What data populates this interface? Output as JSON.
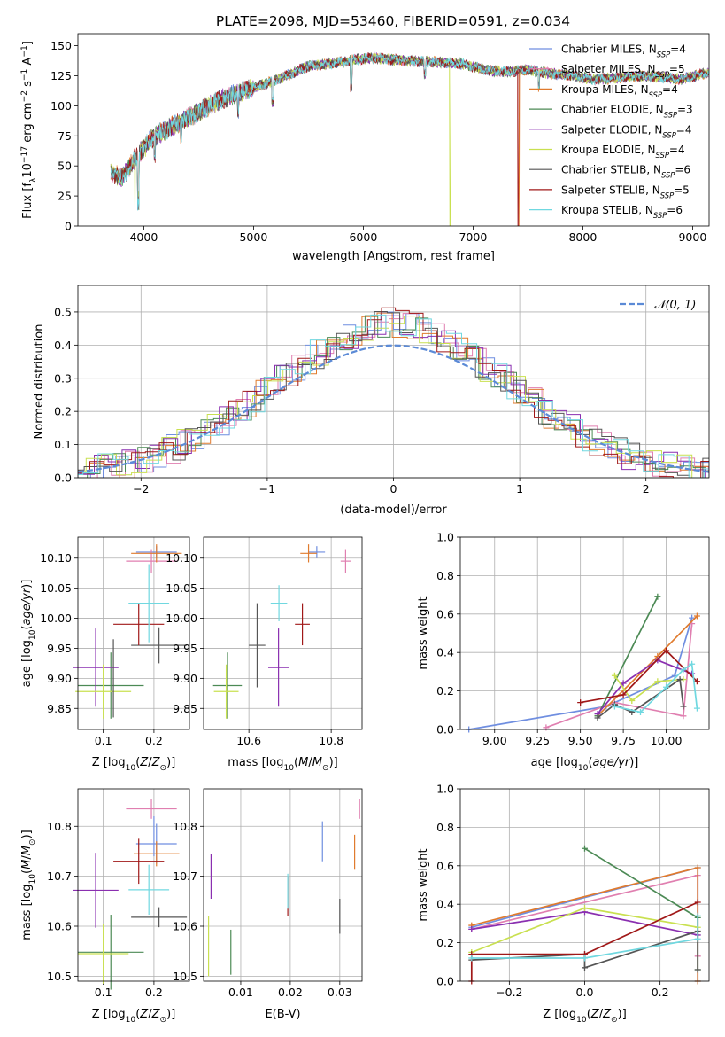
{
  "figure_title": "PLATE=2098, MJD=53460, FIBERID=0591, z=0.034",
  "colors": {
    "Chabrier MILES": "#6f8ee0",
    "Salpeter MILES": "#e07fb0",
    "Kroupa MILES": "#e07b2e",
    "Chabrier ELODIE": "#4c8a55",
    "Salpeter ELODIE": "#8a2fb0",
    "Kroupa ELODIE": "#c9e050",
    "Chabrier STELIB": "#555555",
    "Salpeter STELIB": "#a01818",
    "Kroupa STELIB": "#70d8e0",
    "normal": "#5b8ad6"
  },
  "legend_entries": [
    {
      "model": "Chabrier MILES",
      "n": "4"
    },
    {
      "model": "Salpeter MILES",
      "n": "5"
    },
    {
      "model": "Kroupa MILES",
      "n": "4"
    },
    {
      "model": "Chabrier ELODIE",
      "n": "3"
    },
    {
      "model": "Salpeter ELODIE",
      "n": "4"
    },
    {
      "model": "Kroupa ELODIE",
      "n": "4"
    },
    {
      "model": "Chabrier STELIB",
      "n": "6"
    },
    {
      "model": "Salpeter STELIB",
      "n": "5"
    },
    {
      "model": "Kroupa STELIB",
      "n": "6"
    }
  ],
  "chart_data": [
    {
      "type": "line",
      "panel": "spectrum",
      "xlabel": "wavelength [Angstrom, rest frame]",
      "ylabel": "Flux [f_λ 10^-17 erg cm^-2 s^-1 A^-1]",
      "xlim": [
        3400,
        9150
      ],
      "ylim": [
        0,
        160
      ],
      "xticks": [
        4000,
        5000,
        6000,
        7000,
        8000,
        9000
      ],
      "yticks": [
        0,
        25,
        50,
        75,
        100,
        125,
        150
      ],
      "continuum_x": [
        3700,
        3800,
        3950,
        4100,
        4300,
        4500,
        4700,
        4900,
        5100,
        5300,
        5500,
        5700,
        5900,
        6100,
        6300,
        6500,
        6700,
        6900,
        7100,
        7300,
        7500,
        7700,
        7900,
        8100,
        8300,
        8500,
        8700,
        8900,
        9150
      ],
      "continuum_y": [
        45,
        40,
        60,
        75,
        85,
        95,
        105,
        112,
        118,
        125,
        133,
        135,
        138,
        140,
        138,
        137,
        136,
        135,
        130,
        128,
        130,
        127,
        125,
        122,
        123,
        125,
        124,
        122,
        128
      ],
      "dropouts": [
        {
          "series": "Kroupa ELODIE",
          "x": 3920
        },
        {
          "series": "Kroupa ELODIE",
          "x": 6790
        },
        {
          "series": "Kroupa MILES",
          "x": 7420
        },
        {
          "series": "Salpeter STELIB",
          "x": 7410
        }
      ]
    },
    {
      "type": "area",
      "panel": "residual histogram",
      "xlabel": "(data-model)/error",
      "ylabel": "Normed distribution",
      "xlim": [
        -2.5,
        2.5
      ],
      "ylim": [
        0,
        0.58
      ],
      "xticks": [
        -2,
        -1,
        0,
        1,
        2
      ],
      "yticks": [
        0.0,
        0.1,
        0.2,
        0.3,
        0.4,
        0.5
      ],
      "legend": "𝒩(0, 1)",
      "normal_mean": 0,
      "normal_sigma": 1
    },
    {
      "type": "scatter",
      "panel": "age vs Z",
      "xlabel": "Z [log10(Z/Z⊙)]",
      "ylabel": "age [log10(age/yr)]",
      "xlim": [
        0.05,
        0.27
      ],
      "ylim": [
        9.815,
        10.135
      ],
      "xticks": [
        0.1,
        0.2
      ],
      "yticks": [
        9.85,
        9.9,
        9.95,
        10.0,
        10.05,
        10.1
      ],
      "points": [
        {
          "series": "Chabrier MILES",
          "x": 0.205,
          "y": 10.11,
          "ex": 0.04,
          "ey": 0.01
        },
        {
          "series": "Salpeter MILES",
          "x": 0.195,
          "y": 10.095,
          "ex": 0.05,
          "ey": 0.02
        },
        {
          "series": "Kroupa MILES",
          "x": 0.205,
          "y": 10.108,
          "ex": 0.05,
          "ey": 0.015
        },
        {
          "series": "Chabrier ELODIE",
          "x": 0.115,
          "y": 9.888,
          "ex": 0.065,
          "ey": 0.055
        },
        {
          "series": "Salpeter ELODIE",
          "x": 0.085,
          "y": 9.918,
          "ex": 0.045,
          "ey": 0.065
        },
        {
          "series": "Kroupa ELODIE",
          "x": 0.1,
          "y": 9.878,
          "ex": 0.055,
          "ey": 0.045
        },
        {
          "series": "Chabrier STELIB",
          "x": 0.21,
          "y": 9.955,
          "ex": 0.055,
          "ey": 0.03
        },
        {
          "series": "Salpeter STELIB",
          "x": 0.17,
          "y": 9.99,
          "ex": 0.05,
          "ey": 0.035
        },
        {
          "series": "Kroupa STELIB",
          "x": 0.19,
          "y": 10.025,
          "ex": 0.04,
          "ey": 0.065
        },
        {
          "series": "Chabrier STELIB",
          "x": 0.12,
          "y": 9.9,
          "ex": 0.0,
          "ey": 0.065
        }
      ]
    },
    {
      "type": "scatter",
      "panel": "age vs mass",
      "xlabel": "mass [log10(M/M⊙)]",
      "ylabel": "",
      "xlim": [
        10.49,
        10.875
      ],
      "ylim": [
        9.815,
        10.135
      ],
      "xticks": [
        10.6,
        10.8
      ],
      "yticks": [
        9.85,
        9.9,
        9.95,
        10.0,
        10.05,
        10.1
      ],
      "points": [
        {
          "series": "Chabrier MILES",
          "x": 10.765,
          "y": 10.11,
          "ex": 0.02,
          "ey": 0.01
        },
        {
          "series": "Salpeter MILES",
          "x": 10.835,
          "y": 10.095,
          "ex": 0.012,
          "ey": 0.02
        },
        {
          "series": "Kroupa MILES",
          "x": 10.745,
          "y": 10.108,
          "ex": 0.02,
          "ey": 0.015
        },
        {
          "series": "Chabrier ELODIE",
          "x": 10.548,
          "y": 9.888,
          "ex": 0.035,
          "ey": 0.055
        },
        {
          "series": "Salpeter ELODIE",
          "x": 10.672,
          "y": 9.918,
          "ex": 0.025,
          "ey": 0.065
        },
        {
          "series": "Kroupa ELODIE",
          "x": 10.545,
          "y": 9.878,
          "ex": 0.03,
          "ey": 0.045
        },
        {
          "series": "Chabrier STELIB",
          "x": 10.62,
          "y": 9.955,
          "ex": 0.02,
          "ey": 0.07
        },
        {
          "series": "Salpeter STELIB",
          "x": 10.73,
          "y": 9.99,
          "ex": 0.018,
          "ey": 0.035
        },
        {
          "series": "Kroupa STELIB",
          "x": 10.673,
          "y": 10.025,
          "ex": 0.02,
          "ey": 0.03
        }
      ]
    },
    {
      "type": "line",
      "panel": "mass weight vs age",
      "xlabel": "age [log10(age/yr)]",
      "ylabel": "mass weight",
      "xlim": [
        8.8,
        10.25
      ],
      "ylim": [
        0,
        1.0
      ],
      "xticks": [
        9.0,
        9.25,
        9.5,
        9.75,
        10.0
      ],
      "yticks": [
        0.0,
        0.2,
        0.4,
        0.6,
        0.8,
        1.0
      ],
      "series": [
        {
          "name": "Chabrier MILES",
          "x": [
            8.85,
            9.65,
            10.05,
            10.15
          ],
          "y": [
            0.0,
            0.12,
            0.28,
            0.58
          ]
        },
        {
          "name": "Salpeter MILES",
          "x": [
            9.3,
            9.7,
            10.1,
            10.15
          ],
          "y": [
            0.01,
            0.14,
            0.07,
            0.55
          ]
        },
        {
          "name": "Kroupa MILES",
          "x": [
            9.6,
            9.95,
            10.18
          ],
          "y": [
            0.07,
            0.38,
            0.59
          ]
        },
        {
          "name": "Chabrier ELODIE",
          "x": [
            9.6,
            9.95
          ],
          "y": [
            0.07,
            0.69
          ]
        },
        {
          "name": "Salpeter ELODIE",
          "x": [
            9.6,
            9.75,
            9.95,
            10.15
          ],
          "y": [
            0.08,
            0.24,
            0.36,
            0.29
          ]
        },
        {
          "name": "Kroupa ELODIE",
          "x": [
            9.7,
            9.8,
            9.95,
            10.1
          ],
          "y": [
            0.28,
            0.15,
            0.25,
            0.26
          ]
        },
        {
          "name": "Chabrier STELIB",
          "x": [
            9.6,
            9.7,
            9.8,
            10.08,
            10.1
          ],
          "y": [
            0.06,
            0.13,
            0.09,
            0.26,
            0.12
          ]
        },
        {
          "name": "Salpeter STELIB",
          "x": [
            9.5,
            9.75,
            10.0,
            10.18
          ],
          "y": [
            0.14,
            0.18,
            0.41,
            0.25
          ]
        },
        {
          "name": "Kroupa STELIB",
          "x": [
            9.7,
            9.85,
            10.0,
            10.1,
            10.15,
            10.18
          ],
          "y": [
            0.12,
            0.09,
            0.22,
            0.31,
            0.34,
            0.11
          ]
        }
      ]
    },
    {
      "type": "scatter",
      "panel": "mass vs Z",
      "xlabel": "Z [log10(Z/Z⊙)]",
      "ylabel": "mass [log10(M/M⊙)]",
      "xlim": [
        0.05,
        0.27
      ],
      "ylim": [
        10.49,
        10.875
      ],
      "xticks": [
        0.1,
        0.2
      ],
      "yticks": [
        10.5,
        10.6,
        10.7,
        10.8
      ],
      "points": [
        {
          "series": "Chabrier MILES",
          "x": 0.205,
          "y": 10.765,
          "ex": 0.04,
          "ey": 0.04
        },
        {
          "series": "Salpeter MILES",
          "x": 0.195,
          "y": 10.835,
          "ex": 0.05,
          "ey": 0.02
        },
        {
          "series": "Kroupa MILES",
          "x": 0.205,
          "y": 10.745,
          "ex": 0.045,
          "ey": 0.025
        },
        {
          "series": "Chabrier ELODIE",
          "x": 0.115,
          "y": 10.548,
          "ex": 0.065,
          "ey": 0.075
        },
        {
          "series": "Salpeter ELODIE",
          "x": 0.085,
          "y": 10.672,
          "ex": 0.045,
          "ey": 0.075
        },
        {
          "series": "Kroupa ELODIE",
          "x": 0.1,
          "y": 10.545,
          "ex": 0.05,
          "ey": 0.06
        },
        {
          "series": "Chabrier STELIB",
          "x": 0.21,
          "y": 10.618,
          "ex": 0.055,
          "ey": 0.02
        },
        {
          "series": "Salpeter STELIB",
          "x": 0.17,
          "y": 10.73,
          "ex": 0.05,
          "ey": 0.045
        },
        {
          "series": "Kroupa STELIB",
          "x": 0.19,
          "y": 10.673,
          "ex": 0.04,
          "ey": 0.05
        },
        {
          "series": "Chabrier MILES",
          "x": 0.2,
          "y": 10.78,
          "ex": 0.0,
          "ey": 0.04
        }
      ]
    },
    {
      "type": "scatter",
      "panel": "mass vs E(B-V)",
      "xlabel": "E(B-V)",
      "ylabel": "",
      "xlim": [
        0.0025,
        0.0345
      ],
      "ylim": [
        10.49,
        10.875
      ],
      "xticks": [
        0.01,
        0.02,
        0.03
      ],
      "yticks": [
        10.5,
        10.6,
        10.7,
        10.8
      ],
      "points": [
        {
          "series": "Chabrier MILES",
          "x": 0.0265,
          "y": 10.77,
          "ex": 0,
          "ey": 0.04
        },
        {
          "series": "Salpeter MILES",
          "x": 0.034,
          "y": 10.835,
          "ex": 0,
          "ey": 0.02
        },
        {
          "series": "Kroupa MILES",
          "x": 0.033,
          "y": 10.748,
          "ex": 0,
          "ey": 0.035
        },
        {
          "series": "Chabrier ELODIE",
          "x": 0.008,
          "y": 10.548,
          "ex": 0,
          "ey": 0.045
        },
        {
          "series": "Salpeter ELODIE",
          "x": 0.004,
          "y": 10.7,
          "ex": 0,
          "ey": 0.045
        },
        {
          "series": "Kroupa ELODIE",
          "x": 0.0035,
          "y": 10.56,
          "ex": 0,
          "ey": 0.06
        },
        {
          "series": "Chabrier STELIB",
          "x": 0.03,
          "y": 10.62,
          "ex": 0,
          "ey": 0.035
        },
        {
          "series": "Salpeter STELIB",
          "x": 0.0195,
          "y": 10.66,
          "ex": 0,
          "ey": 0.04
        },
        {
          "series": "Kroupa STELIB",
          "x": 0.0195,
          "y": 10.67,
          "ex": 0,
          "ey": 0.035
        }
      ]
    },
    {
      "type": "line",
      "panel": "mass weight vs Z",
      "xlabel": "Z [log10(Z/Z⊙)]",
      "ylabel": "mass weight",
      "xlim": [
        -0.33,
        0.33
      ],
      "ylim": [
        0,
        1.0
      ],
      "xticks": [
        -0.2,
        0.0,
        0.2
      ],
      "yticks": [
        0.0,
        0.2,
        0.4,
        0.6,
        0.8,
        1.0
      ],
      "series": [
        {
          "name": "Chabrier MILES",
          "x": [
            -0.3,
            0.3,
            0.3
          ],
          "y": [
            0.28,
            0.59,
            0.0
          ]
        },
        {
          "name": "Salpeter MILES",
          "x": [
            -0.3,
            0.3,
            0.3
          ],
          "y": [
            0.27,
            0.55,
            0.13
          ]
        },
        {
          "name": "Kroupa MILES",
          "x": [
            -0.3,
            0.3,
            0.3
          ],
          "y": [
            0.29,
            0.59,
            0.0
          ]
        },
        {
          "name": "Chabrier ELODIE",
          "x": [
            0.0,
            0.3,
            0.3
          ],
          "y": [
            0.69,
            0.33,
            0.06
          ]
        },
        {
          "name": "Salpeter ELODIE",
          "x": [
            -0.3,
            0.0,
            0.3
          ],
          "y": [
            0.27,
            0.36,
            0.24
          ]
        },
        {
          "name": "Kroupa ELODIE",
          "x": [
            -0.3,
            0.0,
            0.3
          ],
          "y": [
            0.15,
            0.38,
            0.28
          ]
        },
        {
          "name": "Chabrier STELIB",
          "x": [
            -0.3,
            0.0,
            0.0,
            0.3,
            0.3
          ],
          "y": [
            0.11,
            0.14,
            0.07,
            0.26,
            0.06
          ]
        },
        {
          "name": "Salpeter STELIB",
          "x": [
            -0.3,
            -0.3,
            0.0,
            0.3
          ],
          "y": [
            0.0,
            0.14,
            0.14,
            0.41
          ]
        },
        {
          "name": "Kroupa STELIB",
          "x": [
            -0.3,
            0.0,
            0.3,
            0.3
          ],
          "y": [
            0.12,
            0.12,
            0.22,
            0.34
          ]
        }
      ]
    }
  ]
}
